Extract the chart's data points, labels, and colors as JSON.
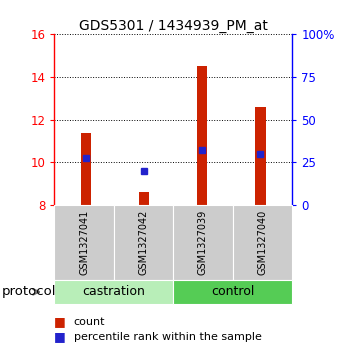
{
  "title": "GDS5301 / 1434939_PM_at",
  "samples": [
    "GSM1327041",
    "GSM1327042",
    "GSM1327039",
    "GSM1327040"
  ],
  "bar_bottoms": [
    8,
    8,
    8,
    8
  ],
  "bar_tops": [
    11.4,
    8.6,
    14.5,
    12.6
  ],
  "percentile_values": [
    10.2,
    9.6,
    10.6,
    10.4
  ],
  "ylim_left": [
    8,
    16
  ],
  "ylim_right": [
    0,
    100
  ],
  "yticks_left": [
    8,
    10,
    12,
    14,
    16
  ],
  "yticks_right": [
    0,
    25,
    50,
    75,
    100
  ],
  "ytick_labels_right": [
    "0",
    "25",
    "50",
    "75",
    "100%"
  ],
  "groups": [
    {
      "label": "castration",
      "samples_idx": [
        0,
        1
      ],
      "color": "#b8eeb8"
    },
    {
      "label": "control",
      "samples_idx": [
        2,
        3
      ],
      "color": "#55cc55"
    }
  ],
  "bar_color": "#cc2200",
  "percentile_color": "#2222cc",
  "bar_width": 0.18,
  "background_label": "#cccccc",
  "protocol_label": "protocol",
  "legend_count_label": "count",
  "legend_percentile_label": "percentile rank within the sample",
  "title_fontsize": 10,
  "tick_fontsize": 8.5,
  "sample_fontsize": 7,
  "group_fontsize": 9,
  "legend_fontsize": 8
}
